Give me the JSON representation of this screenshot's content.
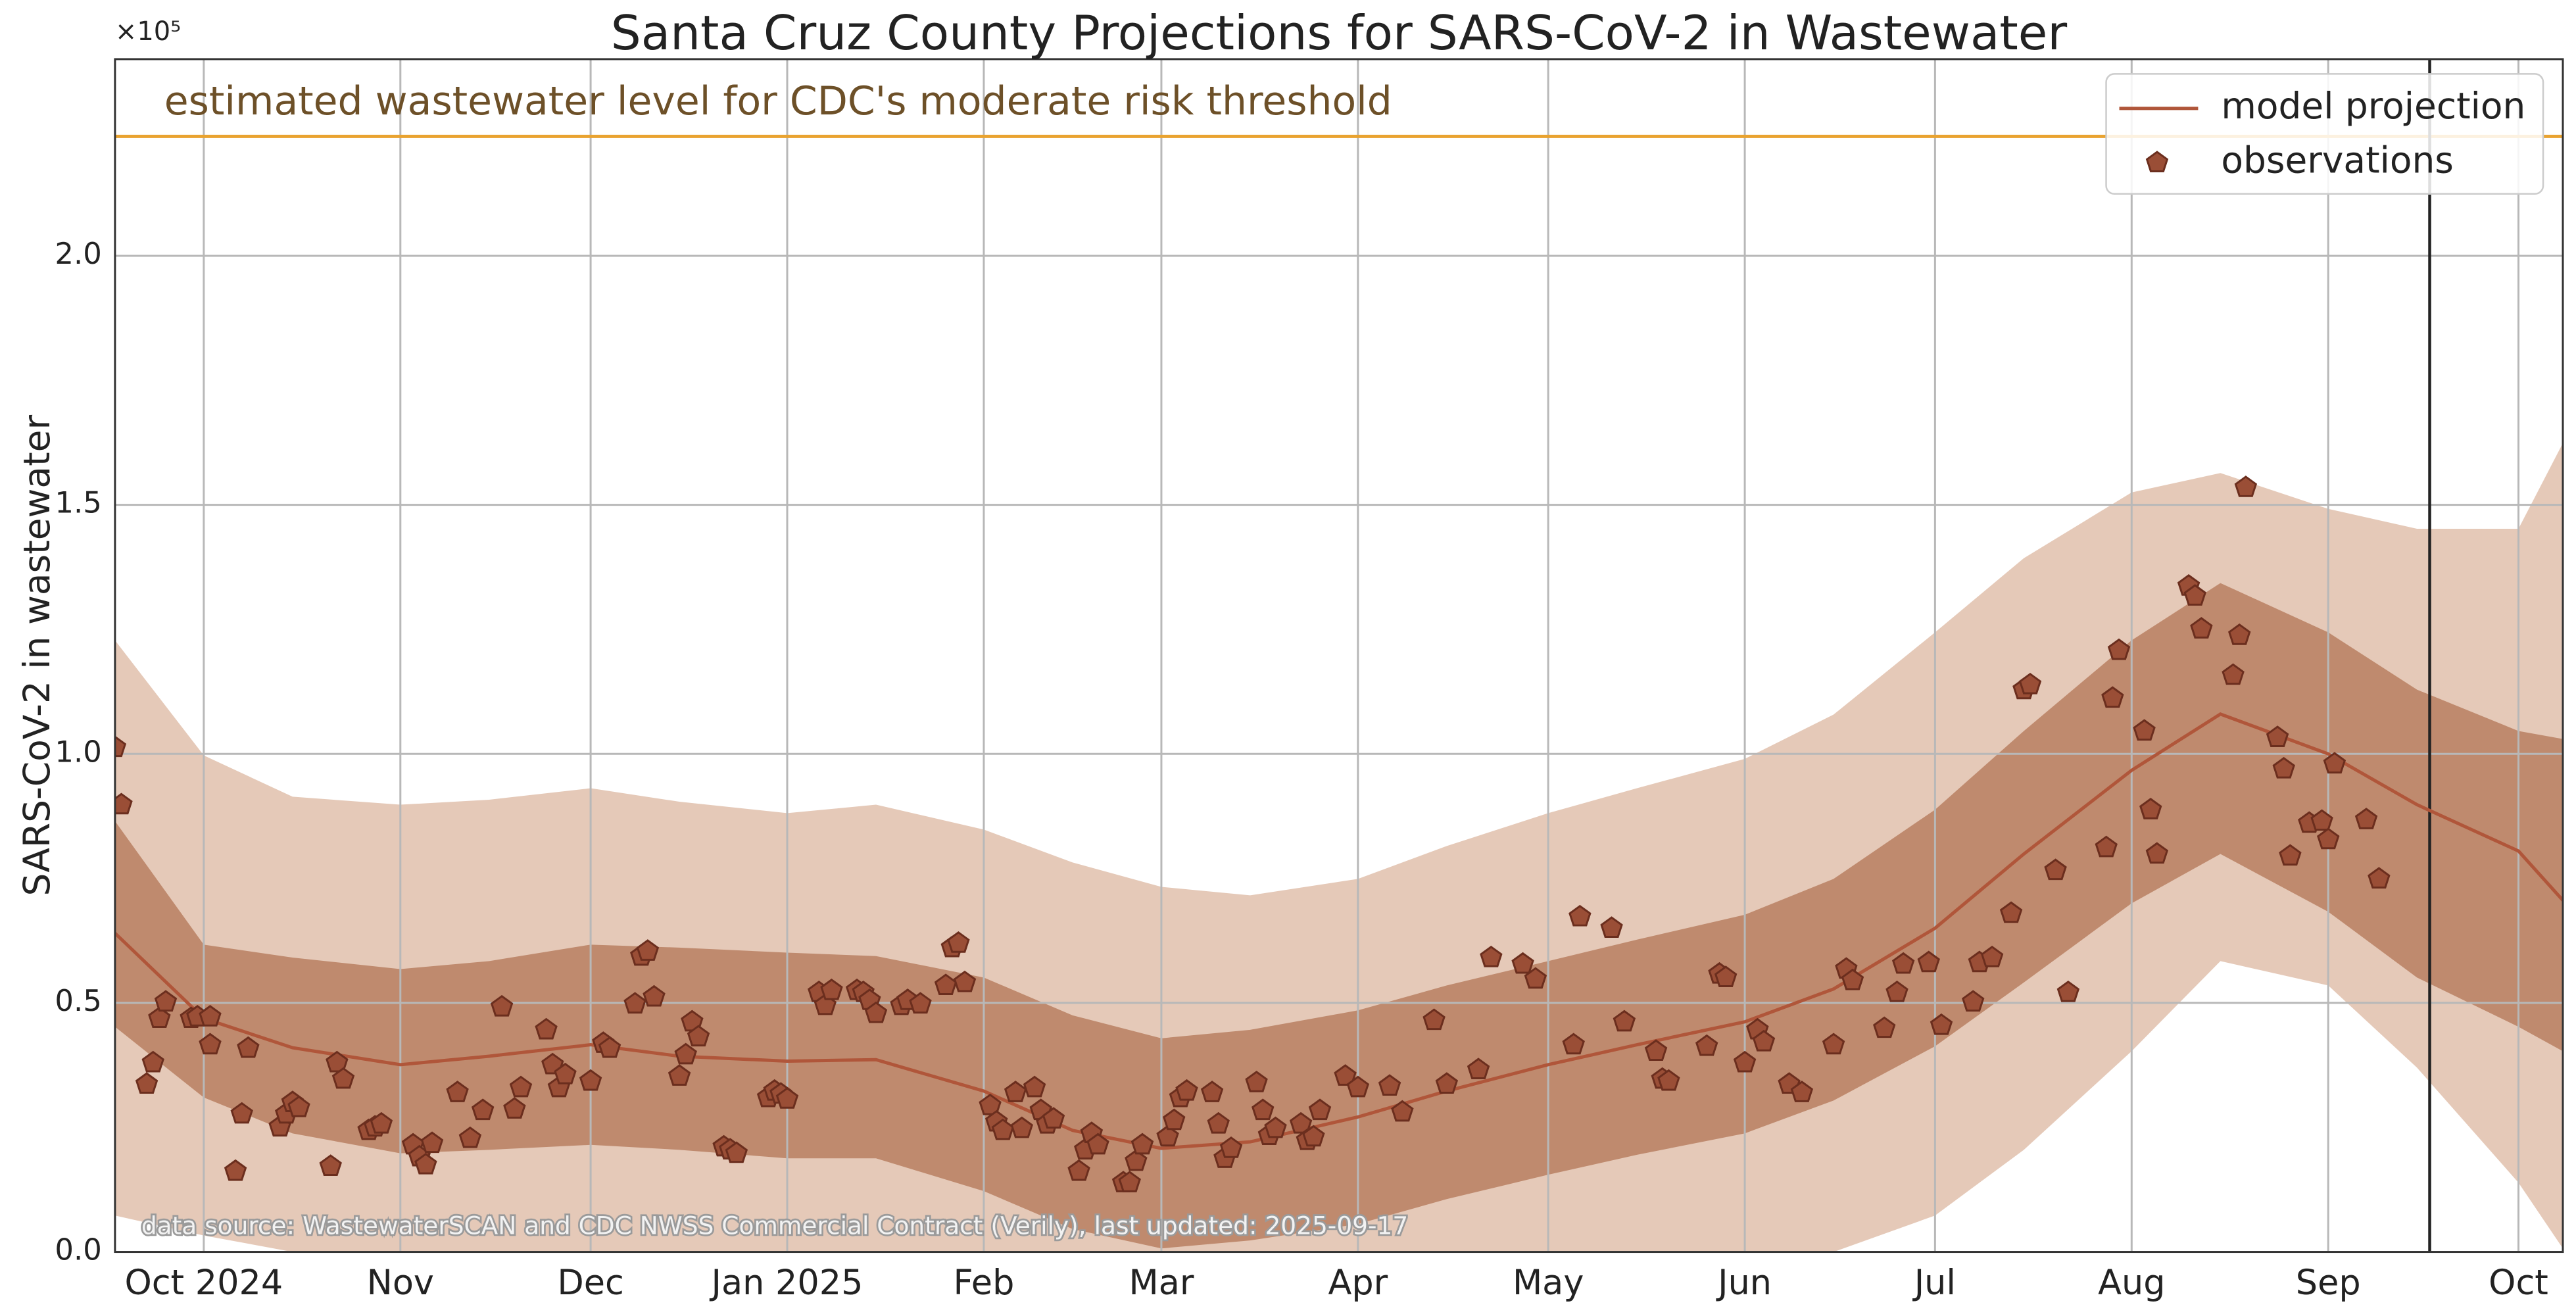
{
  "chart_data": {
    "type": "line",
    "title": "Santa Cruz County Projections for SARS-CoV-2 in Wastewater",
    "ylabel": "SARS-CoV-2 in wastewater",
    "y_offset_label": "×10⁵",
    "source_note": "data source: WastewaterSCAN and CDC NWSS Commercial Contract (Verily), last updated: 2025-09-17",
    "threshold": {
      "value": 224000,
      "color": "#e9a330",
      "label": "estimated wastewater level for CDC's moderate risk threshold"
    },
    "vline": {
      "x": "2025-09-17",
      "color": "#222222"
    },
    "xlim": [
      "2024-09-17",
      "2025-10-08"
    ],
    "xticks": [
      {
        "value": "2024-10-01",
        "label": "Oct 2024"
      },
      {
        "value": "2024-11-01",
        "label": "Nov"
      },
      {
        "value": "2024-12-01",
        "label": "Dec"
      },
      {
        "value": "2025-01-01",
        "label": "Jan 2025"
      },
      {
        "value": "2025-02-01",
        "label": "Feb"
      },
      {
        "value": "2025-03-01",
        "label": "Mar"
      },
      {
        "value": "2025-04-01",
        "label": "Apr"
      },
      {
        "value": "2025-05-01",
        "label": "May"
      },
      {
        "value": "2025-06-01",
        "label": "Jun"
      },
      {
        "value": "2025-07-01",
        "label": "Jul"
      },
      {
        "value": "2025-08-01",
        "label": "Aug"
      },
      {
        "value": "2025-09-01",
        "label": "Sep"
      },
      {
        "value": "2025-10-01",
        "label": "Oct"
      }
    ],
    "ylim": [
      0,
      239500
    ],
    "yticks": [
      {
        "value": 0,
        "label": "0.0"
      },
      {
        "value": 50000,
        "label": "0.5"
      },
      {
        "value": 100000,
        "label": "1.0"
      },
      {
        "value": 150000,
        "label": "1.5"
      },
      {
        "value": 200000,
        "label": "2.0"
      }
    ],
    "grid": true,
    "legend": "upper right",
    "x": [
      "2024-09-17",
      "2024-10-01",
      "2024-10-15",
      "2024-11-01",
      "2024-11-15",
      "2024-12-01",
      "2024-12-15",
      "2025-01-01",
      "2025-01-15",
      "2025-02-01",
      "2025-02-15",
      "2025-03-01",
      "2025-03-15",
      "2025-04-01",
      "2025-04-15",
      "2025-05-01",
      "2025-05-15",
      "2025-06-01",
      "2025-06-15",
      "2025-07-01",
      "2025-07-15",
      "2025-08-01",
      "2025-08-15",
      "2025-09-01",
      "2025-09-15",
      "2025-10-01",
      "2025-10-08"
    ],
    "bands": [
      {
        "color": "#e5c9b8",
        "upper": [
          122800,
          99700,
          91400,
          89800,
          90800,
          93100,
          90400,
          88100,
          89800,
          84800,
          78200,
          73300,
          71600,
          74900,
          81500,
          88100,
          93100,
          99000,
          107900,
          124400,
          139300,
          152500,
          156400,
          149200,
          145200,
          145200,
          162400
        ],
        "lower": [
          7300,
          3300,
          0,
          0,
          0,
          0,
          0,
          0,
          0,
          0,
          0,
          0,
          0,
          0,
          0,
          0,
          0,
          0,
          0,
          7300,
          20500,
          40300,
          58400,
          53500,
          37000,
          13900,
          700
        ]
      },
      {
        "color": "#bf8a6e",
        "upper": [
          86500,
          61700,
          59100,
          56800,
          58400,
          61700,
          61100,
          60100,
          59400,
          55100,
          47500,
          42900,
          44600,
          48500,
          53500,
          58400,
          62700,
          67700,
          74900,
          88800,
          104600,
          122800,
          134300,
          124400,
          112900,
          104600,
          103000
        ],
        "lower": [
          45200,
          31000,
          23800,
          19800,
          20500,
          21500,
          20500,
          18800,
          18800,
          12200,
          4600,
          700,
          2300,
          5600,
          10600,
          15500,
          19500,
          23800,
          30400,
          41300,
          54100,
          70000,
          79900,
          68300,
          55100,
          45200,
          40300
        ]
      }
    ],
    "series": [
      {
        "name": "model projection",
        "color": "#b0563a",
        "values": [
          64000,
          46900,
          41000,
          37600,
          39300,
          41600,
          39300,
          38300,
          38600,
          32300,
          24400,
          20800,
          22100,
          27100,
          32300,
          37600,
          41600,
          46200,
          52800,
          65000,
          79900,
          96700,
          108000,
          100000,
          89800,
          80500,
          70600
        ]
      },
      {
        "name": "observations",
        "type": "scatter",
        "color": "#9a4e36",
        "edgecolor": "#6b2e1e",
        "x": [
          "2024-09-17",
          "2024-09-18",
          "2024-09-22",
          "2024-09-23",
          "2024-09-24",
          "2024-09-25",
          "2024-09-29",
          "2024-09-30",
          "2024-10-02",
          "2024-10-02",
          "2024-10-06",
          "2024-10-07",
          "2024-10-08",
          "2024-10-13",
          "2024-10-14",
          "2024-10-15",
          "2024-10-16",
          "2024-10-21",
          "2024-10-22",
          "2024-10-23",
          "2024-10-27",
          "2024-10-28",
          "2024-10-29",
          "2024-11-03",
          "2024-11-04",
          "2024-11-05",
          "2024-11-06",
          "2024-11-10",
          "2024-11-12",
          "2024-11-14",
          "2024-11-17",
          "2024-11-19",
          "2024-11-20",
          "2024-11-24",
          "2024-11-25",
          "2024-11-26",
          "2024-11-27",
          "2024-12-01",
          "2024-12-03",
          "2024-12-04",
          "2024-12-08",
          "2024-12-09",
          "2024-12-10",
          "2024-12-11",
          "2024-12-15",
          "2024-12-16",
          "2024-12-17",
          "2024-12-18",
          "2024-12-22",
          "2024-12-23",
          "2024-12-24",
          "2024-12-29",
          "2024-12-30",
          "2024-12-31",
          "2025-01-01",
          "2025-01-06",
          "2025-01-07",
          "2025-01-08",
          "2025-01-12",
          "2025-01-13",
          "2025-01-14",
          "2025-01-15",
          "2025-01-19",
          "2025-01-20",
          "2025-01-22",
          "2025-01-26",
          "2025-01-27",
          "2025-01-28",
          "2025-01-29",
          "2025-02-02",
          "2025-02-03",
          "2025-02-04",
          "2025-02-06",
          "2025-02-07",
          "2025-02-09",
          "2025-02-10",
          "2025-02-11",
          "2025-02-12",
          "2025-02-16",
          "2025-02-17",
          "2025-02-18",
          "2025-02-19",
          "2025-02-23",
          "2025-02-24",
          "2025-02-25",
          "2025-02-26",
          "2025-03-02",
          "2025-03-03",
          "2025-03-04",
          "2025-03-05",
          "2025-03-09",
          "2025-03-10",
          "2025-03-11",
          "2025-03-12",
          "2025-03-16",
          "2025-03-17",
          "2025-03-18",
          "2025-03-19",
          "2025-03-23",
          "2025-03-24",
          "2025-03-25",
          "2025-03-26",
          "2025-03-30",
          "2025-04-01",
          "2025-04-06",
          "2025-04-08",
          "2025-04-13",
          "2025-04-15",
          "2025-04-20",
          "2025-04-22",
          "2025-04-27",
          "2025-04-29",
          "2025-05-05",
          "2025-05-06",
          "2025-05-11",
          "2025-05-13",
          "2025-05-18",
          "2025-05-19",
          "2025-05-20",
          "2025-05-26",
          "2025-05-28",
          "2025-05-29",
          "2025-06-01",
          "2025-06-03",
          "2025-06-04",
          "2025-06-08",
          "2025-06-10",
          "2025-06-15",
          "2025-06-17",
          "2025-06-18",
          "2025-06-23",
          "2025-06-25",
          "2025-06-26",
          "2025-06-30",
          "2025-07-02",
          "2025-07-07",
          "2025-07-08",
          "2025-07-10",
          "2025-07-13",
          "2025-07-15",
          "2025-07-16",
          "2025-07-20",
          "2025-07-22",
          "2025-07-28",
          "2025-07-29",
          "2025-07-30",
          "2025-08-03",
          "2025-08-04",
          "2025-08-05",
          "2025-08-10",
          "2025-08-11",
          "2025-08-12",
          "2025-08-17",
          "2025-08-18",
          "2025-08-19",
          "2025-08-24",
          "2025-08-25",
          "2025-08-26",
          "2025-08-29",
          "2025-08-31",
          "2025-09-01",
          "2025-09-02",
          "2025-09-07",
          "2025-09-09"
        ],
        "values": [
          101300,
          89800,
          33700,
          38000,
          46900,
          50200,
          46900,
          47200,
          47200,
          41600,
          16200,
          27700,
          40900,
          25100,
          27700,
          30000,
          29000,
          17200,
          38000,
          34700,
          24400,
          25100,
          25700,
          21500,
          19100,
          17500,
          21800,
          32000,
          22800,
          28400,
          49200,
          28700,
          33000,
          44600,
          37600,
          33000,
          35600,
          34300,
          41900,
          40900,
          49800,
          59400,
          60400,
          51200,
          35300,
          39600,
          46200,
          43200,
          21100,
          20500,
          19800,
          31000,
          32300,
          31700,
          30700,
          52100,
          49500,
          52500,
          52500,
          52100,
          50500,
          47900,
          49500,
          50500,
          49800,
          53500,
          61100,
          62000,
          54100,
          29400,
          26100,
          24400,
          32000,
          24800,
          33000,
          28400,
          25700,
          26700,
          16200,
          20500,
          23800,
          21500,
          13900,
          13900,
          18200,
          21500,
          23100,
          26400,
          31000,
          32300,
          32000,
          25700,
          18800,
          20800,
          34000,
          28400,
          23400,
          24800,
          25700,
          22400,
          23100,
          28400,
          35300,
          33000,
          33300,
          28100,
          46500,
          33700,
          36600,
          59100,
          57800,
          54800,
          41600,
          67300,
          65000,
          46200,
          40300,
          34700,
          34300,
          41300,
          55800,
          55100,
          38000,
          44600,
          42200,
          33700,
          32000,
          41600,
          56800,
          54500,
          44900,
          52100,
          57800,
          58100,
          45500,
          50200,
          58100,
          59100,
          68000,
          112900,
          113900,
          76600,
          52100,
          81200,
          111200,
          120800,
          104600,
          88800,
          79900,
          133700,
          131700,
          125100,
          115800,
          123800,
          153500,
          103300,
          97000,
          79500,
          86100,
          86500,
          82800,
          98000,
          86800,
          74900
        ]
      }
    ]
  }
}
